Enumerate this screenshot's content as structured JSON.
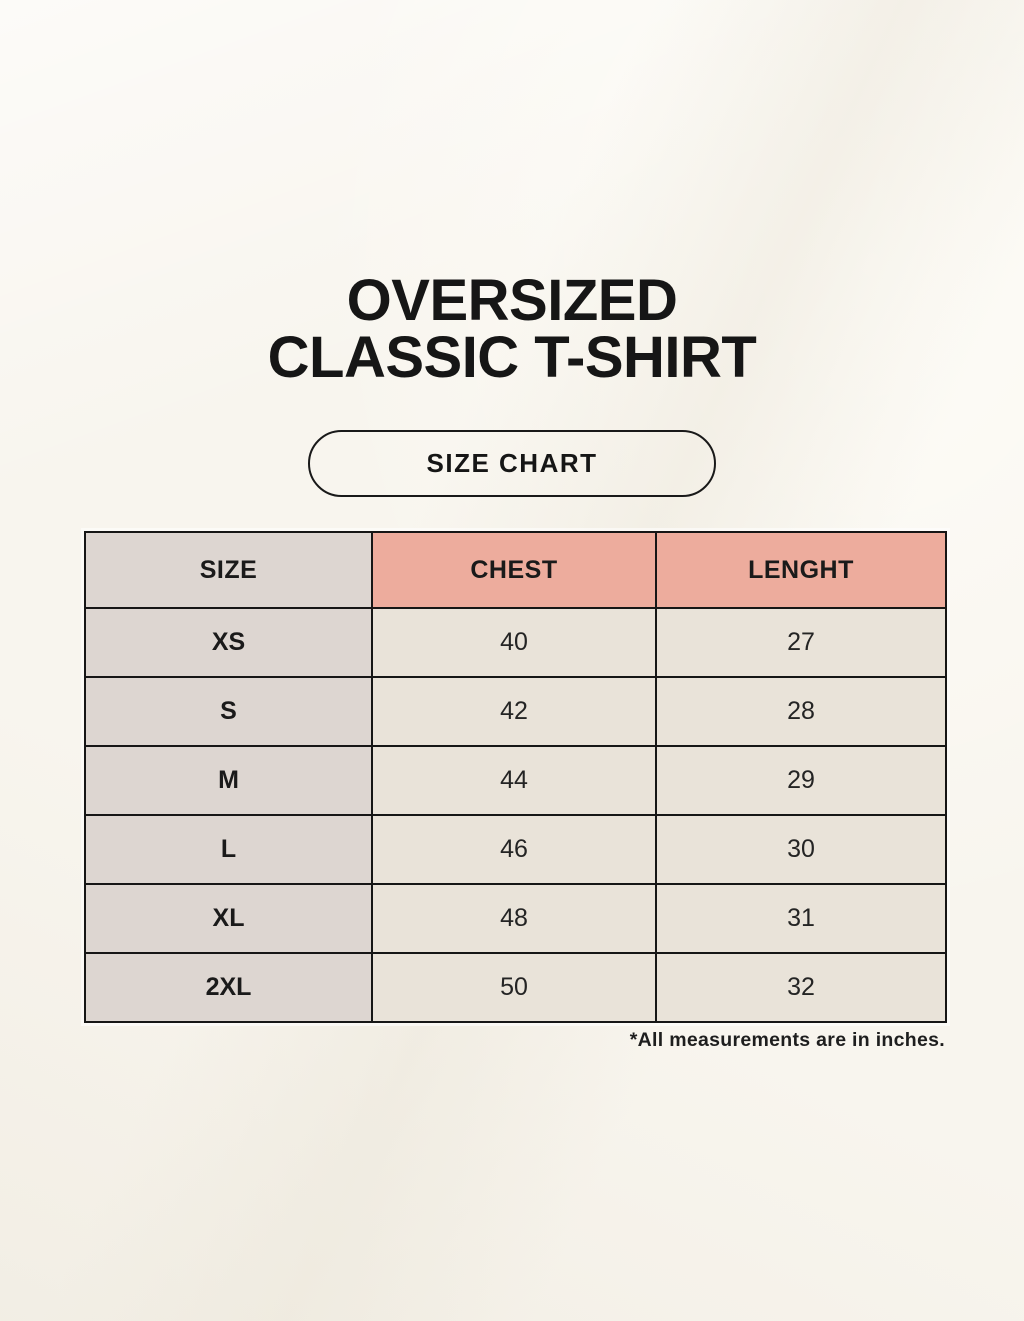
{
  "header": {
    "title_line1": "OVERSIZED",
    "title_line2": "CLASSIC T-SHIRT"
  },
  "size_chart_button": {
    "label": "SIZE CHART"
  },
  "chart_data": {
    "type": "table",
    "title": "OVERSIZED CLASSIC T-SHIRT",
    "subtitle": "SIZE CHART",
    "columns": [
      "SIZE",
      "CHEST",
      "LENGHT"
    ],
    "rows": [
      {
        "size": "XS",
        "chest": "40",
        "lenght": "27"
      },
      {
        "size": "S",
        "chest": "42",
        "lenght": "28"
      },
      {
        "size": "M",
        "chest": "44",
        "lenght": "29"
      },
      {
        "size": "L",
        "chest": "46",
        "lenght": "30"
      },
      {
        "size": "XL",
        "chest": "48",
        "lenght": "31"
      },
      {
        "size": "2XL",
        "chest": "50",
        "lenght": "32"
      }
    ],
    "units_note": "*All measurements are in inches."
  },
  "footnote": "*All measurements are in inches.",
  "colors": {
    "background": "#f8f5ee",
    "header_accent_salmon": "#edac9d",
    "size_column_taupe": "#ddd6d1",
    "data_cell_cream": "#e9e3d9",
    "border_black": "#161616",
    "text": "#1a1a1a"
  }
}
